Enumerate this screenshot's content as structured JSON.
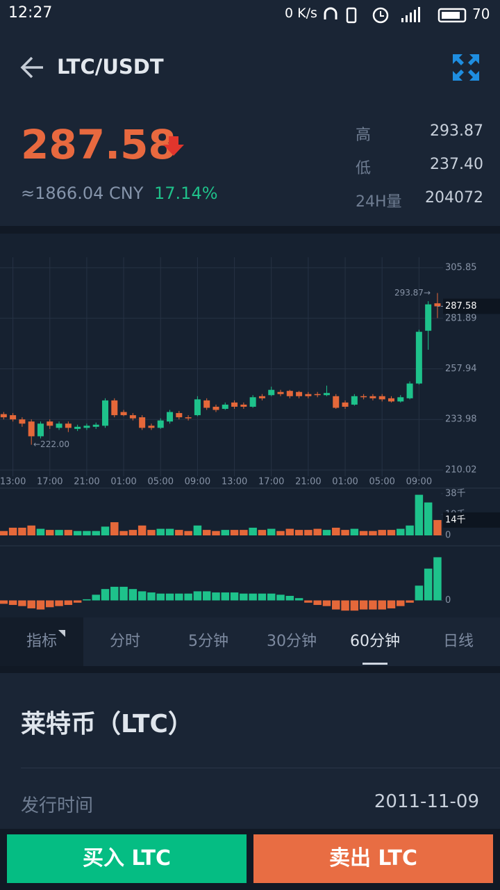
{
  "status_bar": {
    "time": "12:27",
    "network": "0 K/s",
    "battery": "70"
  },
  "header": {
    "title": "LTC/USDT"
  },
  "ticker": {
    "price": "287.58",
    "cny": "≈1866.04 CNY",
    "change": "17.14%",
    "stats": [
      {
        "label": "高",
        "value": "293.87"
      },
      {
        "label": "低",
        "value": "237.40"
      },
      {
        "label": "24H量",
        "value": "204072"
      }
    ]
  },
  "chart_data": [
    {
      "type": "candlestick",
      "up_color": "#1ec28b",
      "down_color": "#e5683a",
      "grid": true,
      "x": [
        null,
        "13:00",
        null,
        null,
        null,
        "17:00",
        null,
        null,
        null,
        "21:00",
        null,
        null,
        null,
        "01:00",
        null,
        null,
        null,
        "05:00",
        null,
        null,
        null,
        "09:00",
        null,
        null,
        null,
        "13:00",
        null,
        null,
        null,
        "17:00",
        null,
        null,
        null,
        "21:00",
        null,
        null,
        null,
        "01:00",
        null,
        null,
        null,
        "05:00",
        null,
        null,
        null,
        "09:00",
        null,
        null
      ],
      "open": [
        236.5,
        236.0,
        234.0,
        233.0,
        226.0,
        233.0,
        230.0,
        232.0,
        229.5,
        230.0,
        230.5,
        231.0,
        243.0,
        237.5,
        236.0,
        235.0,
        231.0,
        230.0,
        233.0,
        237.0,
        235.0,
        236.0,
        243.0,
        240.0,
        239.0,
        242.0,
        241.0,
        240.0,
        245.0,
        245.5,
        247.0,
        247.5,
        247.0,
        246.0,
        246.0,
        245.5,
        245.0,
        242.0,
        241.0,
        245.0,
        245.0,
        245.0,
        244.0,
        242.5,
        244.0,
        251.0,
        276.0,
        289.0
      ],
      "high": [
        237.5,
        237.0,
        235.0,
        234.0,
        233.0,
        234.0,
        233.0,
        233.0,
        231.5,
        232.0,
        232.5,
        244.0,
        244.0,
        238.5,
        237.0,
        236.0,
        232.0,
        234.5,
        238.5,
        238.0,
        236.0,
        245.0,
        244.0,
        241.0,
        242.0,
        243.0,
        242.0,
        245.5,
        246.0,
        249.5,
        248.0,
        248.0,
        247.5,
        247.0,
        247.0,
        250.0,
        246.0,
        243.0,
        246.0,
        246.0,
        246.0,
        246.0,
        245.0,
        245.5,
        252.0,
        276.5,
        290.0,
        293.87
      ],
      "low": [
        234.0,
        233.0,
        230.5,
        222.0,
        225.0,
        229.5,
        229.0,
        228.0,
        228.5,
        229.0,
        229.5,
        230.0,
        235.0,
        235.5,
        233.5,
        229.0,
        229.0,
        229.5,
        232.0,
        234.0,
        233.5,
        235.5,
        238.5,
        237.5,
        238.5,
        239.0,
        239.0,
        239.5,
        243.0,
        245.0,
        245.0,
        244.0,
        244.0,
        244.0,
        244.5,
        245.0,
        239.0,
        239.0,
        240.5,
        243.5,
        243.0,
        242.5,
        242.0,
        242.0,
        243.5,
        250.5,
        267.0,
        282.0
      ],
      "close": [
        235.0,
        234.0,
        232.0,
        226.0,
        232.0,
        231.0,
        232.0,
        230.0,
        230.5,
        231.0,
        231.5,
        243.0,
        236.0,
        236.0,
        234.5,
        230.0,
        230.0,
        233.5,
        237.5,
        235.0,
        234.5,
        243.5,
        239.5,
        238.5,
        241.0,
        240.0,
        240.0,
        244.5,
        244.0,
        248.0,
        246.0,
        245.0,
        245.0,
        245.0,
        245.5,
        246.5,
        239.5,
        240.0,
        245.0,
        244.5,
        244.0,
        243.5,
        242.5,
        244.5,
        251.0,
        275.5,
        288.5,
        287.58
      ],
      "ylim": [
        207.05,
        310.81
      ],
      "yticks": [
        305.85,
        281.89,
        257.94,
        233.98,
        210.02
      ],
      "annotations": [
        {
          "text": "293.87→",
          "value": 293.87
        },
        {
          "text": "←222.00",
          "value": 222.0
        }
      ],
      "current_label": "287.58"
    },
    {
      "type": "bar",
      "grid": false,
      "values": [
        4,
        7,
        7,
        9,
        6,
        5,
        5,
        5,
        4,
        4,
        4,
        8,
        12,
        4,
        5,
        9,
        5,
        6,
        6,
        5,
        4,
        9,
        5,
        4,
        5,
        5,
        5,
        7,
        5,
        6,
        4,
        6,
        5,
        5,
        6,
        5,
        7,
        5,
        6,
        4,
        4,
        5,
        5,
        6,
        9,
        37,
        30,
        14
      ],
      "ylim": [
        -4.43,
        41.17
      ],
      "yticks": [
        {
          "value": 38,
          "label": "38千"
        },
        {
          "value": 19,
          "label": "19千"
        },
        0
      ],
      "current_label": "14千"
    },
    {
      "type": "bar",
      "grid": false,
      "values": [
        -0.3,
        -0.4,
        -0.5,
        -0.7,
        -0.8,
        -0.6,
        -0.5,
        -0.4,
        -0.2,
        0.1,
        0.5,
        1.0,
        1.2,
        1.2,
        1.0,
        0.8,
        0.7,
        0.6,
        0.6,
        0.6,
        0.6,
        0.8,
        0.8,
        0.7,
        0.7,
        0.7,
        0.6,
        0.6,
        0.6,
        0.6,
        0.5,
        0.4,
        0.2,
        -0.2,
        -0.4,
        -0.5,
        -0.8,
        -0.9,
        -0.9,
        -0.8,
        -0.8,
        -0.8,
        -0.7,
        -0.5,
        -0.2,
        1.3,
        2.8,
        3.8
      ],
      "ylim": [
        -1.5,
        4.5
      ],
      "yticks": [
        0
      ]
    }
  ],
  "tabs": [
    "指标",
    "分时",
    "5分钟",
    "30分钟",
    "60分钟",
    "日线"
  ],
  "active_tab": "60分钟",
  "info": {
    "title": "莱特币（LTC）",
    "rows": [
      {
        "label": "发行时间",
        "value": "2011-11-09"
      }
    ]
  },
  "buttons": {
    "buy": "买入 LTC",
    "sell": "卖出 LTC"
  }
}
